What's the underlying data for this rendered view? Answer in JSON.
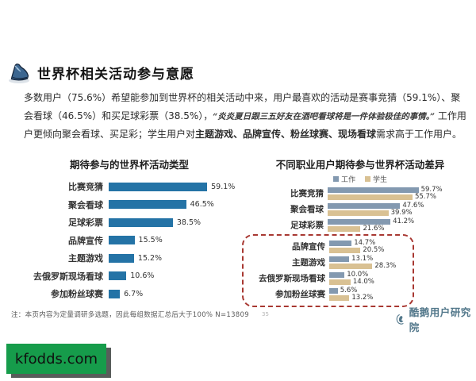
{
  "page": {
    "header": {
      "title": "世界杯相关活动参与意愿"
    },
    "paragraph_segments": [
      {
        "style": "normal",
        "text": "多数用户（75.6%）希望能参加到世界杯的相关活动中来，用户最喜欢的活动是赛事竞猜（59.1%）、聚会看球（46.5%）和买足球彩票（38.5%），"
      },
      {
        "style": "quote",
        "text": "“炎炎夏日跟三五好友在酒吧看球将是一件体验极佳的事情。”"
      },
      {
        "style": "normal",
        "text": " 工作用户更倾向聚会看球、买足彩；学生用户对"
      },
      {
        "style": "bold",
        "text": "主题游戏、品牌宣传、粉丝球赛、现场看球"
      },
      {
        "style": "normal",
        "text": "需求高于工作用户。"
      }
    ],
    "note": "注：本页内容为定量调研多选题，因此每组数据汇总后大于100%   N=13809",
    "page_number": "35",
    "logo": {
      "text": "酷鹅用户研究院",
      "color": "#53788b"
    },
    "watermark": {
      "text": "kfodds.com",
      "background": "#169c4b",
      "shadow": "#585d5b"
    }
  },
  "colors": {
    "bar_blue": "#2473a6",
    "work_blue": "#8399b0",
    "student_tan": "#d9c193",
    "highlight_red": "#a83832"
  },
  "chart_data": [
    {
      "type": "bar",
      "orientation": "horizontal",
      "title": "期待参与的世界杯活动类型",
      "categories": [
        "比赛竞猜",
        "聚会看球",
        "足球彩票",
        "品牌宣传",
        "主题游戏",
        "去俄罗斯现场看球",
        "参加粉丝球赛"
      ],
      "values": [
        59.1,
        46.5,
        38.5,
        15.5,
        15.2,
        10.6,
        6.7
      ],
      "unit": "%",
      "xlim": [
        0,
        65
      ],
      "bar_color": "#2473a6",
      "grid": false
    },
    {
      "type": "bar",
      "orientation": "horizontal",
      "title": "不同职业用户期待参与世界杯活动差异",
      "categories": [
        "比赛竞猜",
        "聚会看球",
        "足球彩票",
        "品牌宣传",
        "主题游戏",
        "去俄罗斯现场看球",
        "参加粉丝球赛"
      ],
      "series": [
        {
          "name": "工作",
          "color": "#8399b0",
          "values": [
            59.7,
            47.6,
            41.2,
            14.7,
            13.1,
            10.0,
            5.6
          ]
        },
        {
          "name": "学生",
          "color": "#d9c193",
          "values": [
            55.7,
            39.9,
            21.6,
            20.5,
            28.3,
            14.0,
            13.2
          ]
        }
      ],
      "unit": "%",
      "xlim": [
        0,
        65
      ],
      "legend_position": "top",
      "grid": false,
      "highlight_box_categories": [
        "品牌宣传",
        "主题游戏",
        "去俄罗斯现场看球",
        "参加粉丝球赛"
      ]
    }
  ]
}
